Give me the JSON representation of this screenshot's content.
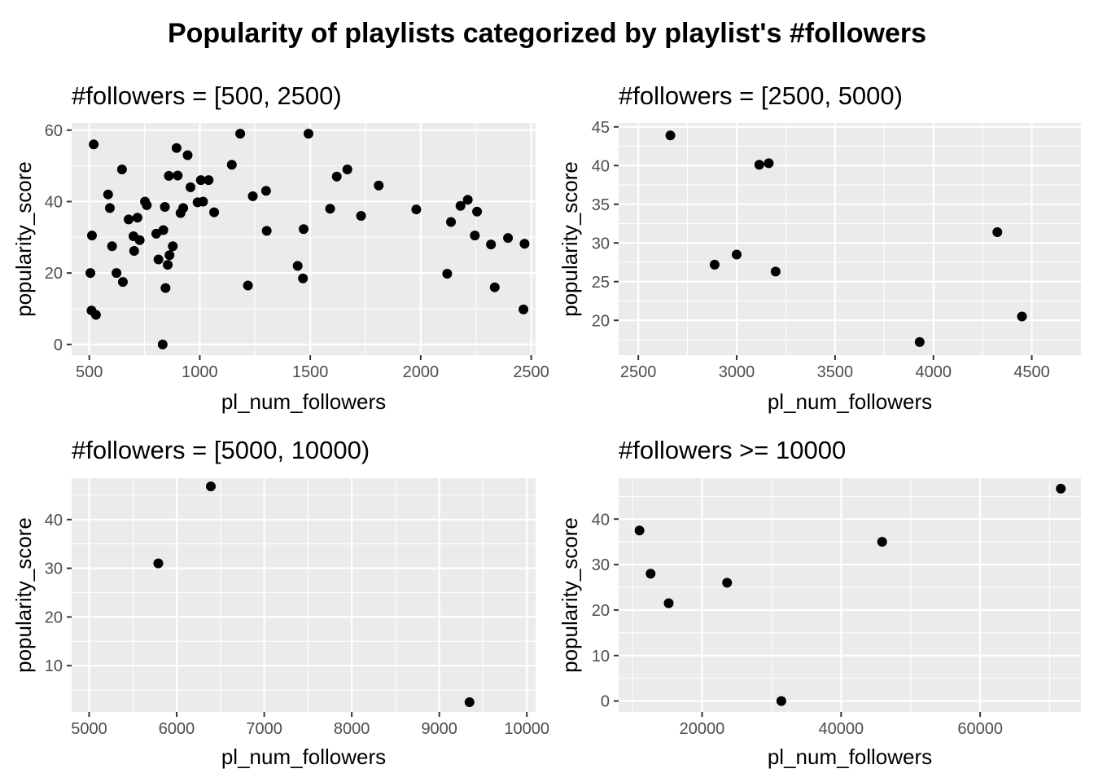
{
  "title": "Popularity of playlists categorized by playlist's #followers",
  "chart_data": [
    {
      "type": "scatter",
      "title": "#followers = [500, 2500)",
      "xlabel": "pl_num_followers",
      "ylabel": "popularity_score",
      "xlim": [
        420,
        2520
      ],
      "ylim": [
        -3,
        62
      ],
      "xticks": [
        500,
        1000,
        1500,
        2000,
        2500
      ],
      "xtick_labels": [
        "500",
        "1000",
        "1500",
        "2000",
        "2500"
      ],
      "yticks": [
        0,
        20,
        40,
        60
      ],
      "ytick_labels": [
        "0",
        "20",
        "40",
        "60"
      ],
      "grid": true,
      "points": [
        [
          505,
          20
        ],
        [
          510,
          9.5
        ],
        [
          512,
          30.5
        ],
        [
          520,
          56
        ],
        [
          530,
          8.3
        ],
        [
          585,
          42
        ],
        [
          593,
          38.2
        ],
        [
          603,
          27.5
        ],
        [
          623,
          20
        ],
        [
          648,
          49
        ],
        [
          652,
          17.5
        ],
        [
          678,
          35
        ],
        [
          700,
          30.3
        ],
        [
          703,
          26.2
        ],
        [
          718,
          35.5
        ],
        [
          728,
          29.2
        ],
        [
          752,
          40
        ],
        [
          760,
          39
        ],
        [
          803,
          31
        ],
        [
          813,
          23.8
        ],
        [
          832,
          0
        ],
        [
          835,
          32
        ],
        [
          842,
          38.5
        ],
        [
          845,
          15.8
        ],
        [
          855,
          22.3
        ],
        [
          860,
          47.2
        ],
        [
          863,
          25
        ],
        [
          878,
          27.5
        ],
        [
          895,
          55
        ],
        [
          900,
          47.3
        ],
        [
          913,
          36.8
        ],
        [
          925,
          38.2
        ],
        [
          945,
          53
        ],
        [
          958,
          44
        ],
        [
          990,
          39.8
        ],
        [
          1005,
          46
        ],
        [
          1015,
          40
        ],
        [
          1040,
          46
        ],
        [
          1065,
          37
        ],
        [
          1145,
          50.3
        ],
        [
          1183,
          59
        ],
        [
          1218,
          16.5
        ],
        [
          1240,
          41.5
        ],
        [
          1300,
          43
        ],
        [
          1303,
          31.8
        ],
        [
          1443,
          22
        ],
        [
          1467,
          18.5
        ],
        [
          1470,
          32.3
        ],
        [
          1492,
          59
        ],
        [
          1590,
          38
        ],
        [
          1620,
          47
        ],
        [
          1668,
          49
        ],
        [
          1730,
          36
        ],
        [
          1810,
          44.5
        ],
        [
          1980,
          37.8
        ],
        [
          2120,
          19.8
        ],
        [
          2137,
          34.3
        ],
        [
          2180,
          38.8
        ],
        [
          2213,
          40.5
        ],
        [
          2245,
          30.5
        ],
        [
          2255,
          37.2
        ],
        [
          2318,
          28
        ],
        [
          2335,
          16
        ],
        [
          2395,
          29.8
        ],
        [
          2465,
          9.8
        ],
        [
          2470,
          28.2
        ]
      ]
    },
    {
      "type": "scatter",
      "title": "#followers = [2500, 5000)",
      "xlabel": "pl_num_followers",
      "ylabel": "popularity_score",
      "xlim": [
        2400,
        4750
      ],
      "ylim": [
        15.5,
        45.5
      ],
      "xticks": [
        2500,
        3000,
        3500,
        4000,
        4500
      ],
      "xtick_labels": [
        "2500",
        "3000",
        "3500",
        "4000",
        "4500"
      ],
      "yticks": [
        20,
        25,
        30,
        35,
        40,
        45
      ],
      "ytick_labels": [
        "20",
        "25",
        "30",
        "35",
        "40",
        "45"
      ],
      "grid": true,
      "points": [
        [
          2663,
          43.9
        ],
        [
          2888,
          27.2
        ],
        [
          3000,
          28.5
        ],
        [
          3115,
          40.1
        ],
        [
          3163,
          40.3
        ],
        [
          3198,
          26.3
        ],
        [
          3930,
          17.2
        ],
        [
          4325,
          31.4
        ],
        [
          4450,
          20.5
        ]
      ]
    },
    {
      "type": "scatter",
      "title": "#followers = [5000, 10000)",
      "xlabel": "pl_num_followers",
      "ylabel": "popularity_score",
      "xlim": [
        4800,
        10100
      ],
      "ylim": [
        0.5,
        48.5
      ],
      "xticks": [
        5000,
        6000,
        7000,
        8000,
        9000,
        10000
      ],
      "xtick_labels": [
        "5000",
        "6000",
        "7000",
        "8000",
        "9000",
        "10000"
      ],
      "yticks": [
        10,
        20,
        30,
        40
      ],
      "ytick_labels": [
        "10",
        "20",
        "30",
        "40"
      ],
      "grid": true,
      "points": [
        [
          5790,
          31
        ],
        [
          6390,
          46.8
        ],
        [
          9345,
          2.5
        ]
      ]
    },
    {
      "type": "scatter",
      "title": "#followers >= 10000",
      "xlabel": "pl_num_followers",
      "ylabel": "popularity_score",
      "xlim": [
        8000,
        74500
      ],
      "ylim": [
        -2.4,
        49
      ],
      "xticks": [
        20000,
        40000,
        60000
      ],
      "xtick_labels": [
        "20000",
        "40000",
        "60000"
      ],
      "yticks": [
        0,
        10,
        20,
        30,
        40
      ],
      "ytick_labels": [
        "0",
        "10",
        "20",
        "30",
        "40"
      ],
      "grid": true,
      "points": [
        [
          11000,
          37.5
        ],
        [
          12600,
          28
        ],
        [
          15200,
          21.5
        ],
        [
          23600,
          26
        ],
        [
          31400,
          0
        ],
        [
          45900,
          35
        ],
        [
          71600,
          46.7
        ]
      ]
    }
  ]
}
